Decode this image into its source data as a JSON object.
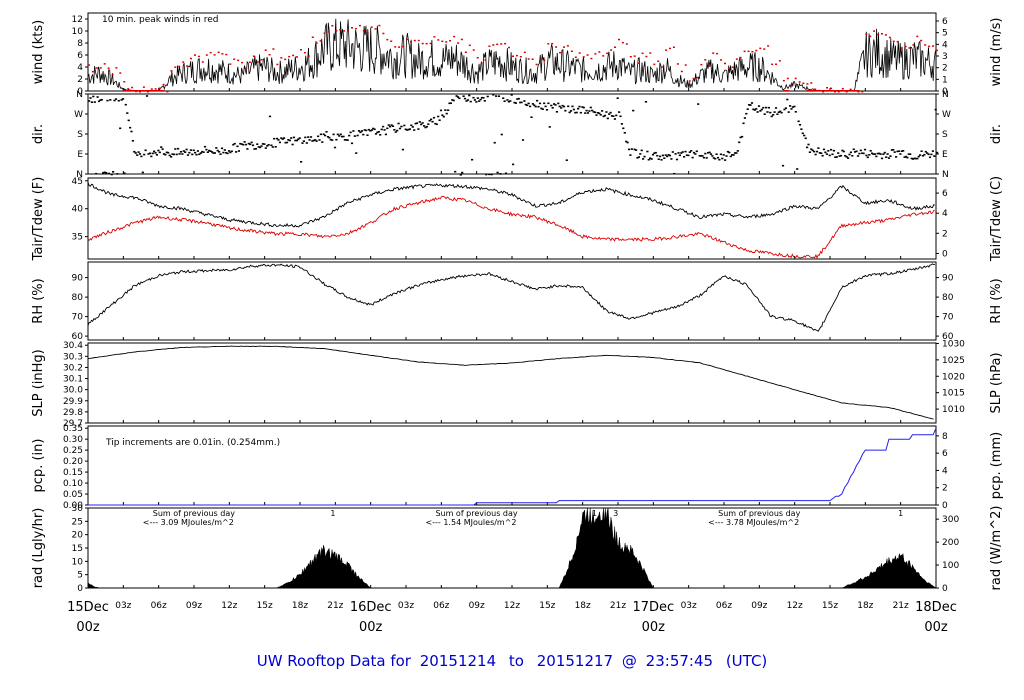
{
  "footer": {
    "prefix": "UW Rooftop Data for",
    "start": "20151214",
    "to": "to",
    "end": "20151217",
    "at": "@",
    "time": "23:57:45",
    "tz": "(UTC)"
  },
  "colors": {
    "main": "#000000",
    "red": "#dd0000",
    "blue": "#2222ee",
    "purple": "#9900cc",
    "day_label": "#dd0000",
    "footer": "#0000cc"
  },
  "x_axis": {
    "range_hours": [
      0,
      72
    ],
    "hour_ticks": [
      {
        "h": 3,
        "label": "03z"
      },
      {
        "h": 6,
        "label": "06z"
      },
      {
        "h": 9,
        "label": "09z"
      },
      {
        "h": 12,
        "label": "12z"
      },
      {
        "h": 15,
        "label": "15z"
      },
      {
        "h": 18,
        "label": "18z"
      },
      {
        "h": 21,
        "label": "21z"
      },
      {
        "h": 27,
        "label": "03z"
      },
      {
        "h": 30,
        "label": "06z"
      },
      {
        "h": 33,
        "label": "09z"
      },
      {
        "h": 36,
        "label": "12z"
      },
      {
        "h": 39,
        "label": "15z"
      },
      {
        "h": 42,
        "label": "18z"
      },
      {
        "h": 45,
        "label": "21z"
      },
      {
        "h": 51,
        "label": "03z"
      },
      {
        "h": 54,
        "label": "06z"
      },
      {
        "h": 57,
        "label": "09z"
      },
      {
        "h": 60,
        "label": "12z"
      },
      {
        "h": 63,
        "label": "15z"
      },
      {
        "h": 66,
        "label": "18z"
      },
      {
        "h": 69,
        "label": "21z"
      }
    ],
    "day_labels": [
      {
        "h": 0,
        "day": "15Dec",
        "time": "00z"
      },
      {
        "h": 24,
        "day": "16Dec",
        "time": "00z"
      },
      {
        "h": 48,
        "day": "17Dec",
        "time": "00z"
      },
      {
        "h": 72,
        "day": "18Dec",
        "time": "00z"
      }
    ]
  },
  "panels": [
    {
      "id": "wind",
      "ylabel_left": "wind (kts)",
      "ylabel_right": "wind (m/s)",
      "ylim": [
        0,
        13
      ],
      "left_ticks": [
        0,
        2,
        4,
        6,
        8,
        10,
        12
      ],
      "right_ticks": [
        0,
        1,
        2,
        3,
        4,
        5,
        6
      ],
      "right_scale": 0.5144,
      "annotation": "10 min. peak winds in red"
    },
    {
      "id": "dir",
      "ylabel_left": "dir.",
      "ylabel_right": "dir.",
      "ylim": [
        0,
        360
      ],
      "left_ticks": [
        {
          "v": 0,
          "l": "N"
        },
        {
          "v": 90,
          "l": "E"
        },
        {
          "v": 180,
          "l": "S"
        },
        {
          "v": 270,
          "l": "W"
        },
        {
          "v": 360,
          "l": "N"
        }
      ]
    },
    {
      "id": "temp",
      "ylabel_left": "Tair/Tdew (F)",
      "ylabel_right": "Tair/Tdew (C)",
      "ylim": [
        31,
        45.5
      ],
      "left_ticks": [
        35,
        40,
        45
      ],
      "right_ticks": [
        0,
        2,
        4,
        6
      ]
    },
    {
      "id": "rh",
      "ylabel_left": "RH (%)",
      "ylabel_right": "RH (%)",
      "ylim": [
        58,
        98
      ],
      "left_ticks": [
        60,
        70,
        80,
        90
      ],
      "right_ticks": [
        60,
        70,
        80,
        90
      ]
    },
    {
      "id": "slp",
      "ylabel_left": "SLP (inHg)",
      "ylabel_right": "SLP (hPa)",
      "ylim": [
        29.7,
        30.42
      ],
      "left_ticks": [
        29.7,
        29.8,
        29.9,
        30.0,
        30.1,
        30.2,
        30.3,
        30.4
      ],
      "right_ticks": [
        1010,
        1015,
        1020,
        1025,
        1030
      ]
    },
    {
      "id": "pcp",
      "ylabel_left": "pcp. (in)",
      "ylabel_right": "pcp. (mm)",
      "ylim": [
        0,
        0.36
      ],
      "left_ticks": [
        0.0,
        0.05,
        0.1,
        0.15,
        0.2,
        0.25,
        0.3,
        0.35
      ],
      "right_ticks": [
        0,
        2,
        4,
        6,
        8
      ],
      "annotation": "Tip increments are 0.01in. (0.254mm.)"
    },
    {
      "id": "rad",
      "ylabel_left": "rad (Lgly/hr)",
      "ylabel_right": "rad (W/m^2)",
      "ylim": [
        0,
        30
      ],
      "left_ticks": [
        0,
        5,
        10,
        15,
        20,
        25,
        30
      ],
      "right_ticks": [
        0,
        100,
        200,
        300
      ],
      "daily_sums": [
        {
          "h": 5.5,
          "line1": "Sum of previous day",
          "line2": "<--- 3.09 MJoules/m^2"
        },
        {
          "h": 29.5,
          "line1": "Sum of previous day",
          "line2": "<--- 1.54 MJoules/m^2"
        },
        {
          "h": 53.5,
          "line1": "Sum of previous day",
          "line2": "<--- 3.78 MJoules/m^2"
        }
      ],
      "markers": [
        {
          "h": 20.8,
          "label": "1"
        },
        {
          "h": 43.0,
          "label": "1"
        },
        {
          "h": 44.8,
          "label": "3"
        },
        {
          "h": 69.0,
          "label": "1"
        }
      ]
    }
  ],
  "chart_data": {
    "type": "line",
    "x_unit": "hours since 15Dec 00z",
    "wind_kts": {
      "x": [
        0,
        1,
        2,
        3,
        4,
        5,
        6,
        7,
        8,
        9,
        10,
        11,
        12,
        13,
        14,
        15,
        16,
        17,
        18,
        19,
        20,
        21,
        22,
        23,
        24,
        25,
        26,
        27,
        28,
        29,
        30,
        31,
        32,
        33,
        34,
        35,
        36,
        37,
        38,
        39,
        40,
        41,
        42,
        43,
        44,
        45,
        46,
        47,
        48,
        49,
        50,
        51,
        52,
        53,
        54,
        55,
        56,
        57,
        58,
        59,
        60,
        61,
        62,
        63,
        64,
        65,
        66,
        67,
        68,
        69,
        70,
        71,
        72
      ],
      "mean": [
        2.5,
        3,
        2,
        0.3,
        0,
        0,
        0,
        2,
        3,
        3.5,
        4,
        3.5,
        3,
        2.5,
        3.5,
        4,
        3,
        3.5,
        4,
        5,
        7,
        7.5,
        7.5,
        7,
        7,
        6.5,
        5.5,
        6,
        5,
        5.5,
        5,
        5.5,
        4.5,
        3,
        4.5,
        5,
        4,
        3.5,
        3,
        5,
        4.5,
        4,
        3.5,
        3.5,
        4,
        4.5,
        3,
        3.5,
        2.5,
        4,
        2,
        1,
        2.5,
        3.5,
        2.5,
        3.5,
        4,
        4,
        2.5,
        0.5,
        1,
        0.5,
        0,
        0,
        0,
        0,
        6,
        6.5,
        5.5,
        5,
        5.5,
        5,
        4.5
      ],
      "peak": [
        4,
        4.5,
        3.5,
        1,
        0.5,
        0,
        0.5,
        3.5,
        5,
        5.5,
        6.5,
        6,
        5,
        4.5,
        5.5,
        6.5,
        5,
        6,
        6.5,
        8.5,
        10.5,
        10,
        11,
        10.5,
        11,
        9,
        8,
        9,
        8,
        8.5,
        8,
        8.5,
        7,
        5,
        7.5,
        8,
        6.5,
        6,
        5,
        8,
        7,
        6.5,
        6,
        6,
        7,
        8,
        5.5,
        6,
        4.5,
        7,
        4,
        2,
        5,
        6,
        4.5,
        6,
        6.5,
        7,
        4.5,
        1.5,
        2,
        1,
        0.5,
        0,
        0,
        0,
        9.5,
        10,
        8.5,
        8,
        8.5,
        8,
        7
      ]
    },
    "dir_deg": {
      "x": [
        0,
        1,
        2,
        3,
        4,
        5,
        6,
        7,
        8,
        9,
        10,
        11,
        12,
        13,
        14,
        15,
        16,
        17,
        18,
        19,
        20,
        21,
        22,
        23,
        24,
        25,
        26,
        27,
        28,
        29,
        30,
        31,
        32,
        33,
        34,
        35,
        36,
        37,
        38,
        39,
        40,
        41,
        42,
        43,
        44,
        45,
        46,
        47,
        48,
        49,
        50,
        51,
        52,
        53,
        54,
        55,
        56,
        57,
        58,
        59,
        60,
        61,
        62,
        63,
        64,
        65,
        66,
        67,
        68,
        69,
        70,
        71,
        72
      ],
      "y": [
        340,
        350,
        355,
        350,
        80,
        100,
        110,
        95,
        100,
        105,
        110,
        105,
        115,
        130,
        135,
        140,
        145,
        150,
        155,
        160,
        165,
        170,
        175,
        180,
        190,
        200,
        210,
        215,
        220,
        230,
        260,
        355,
        350,
        345,
        350,
        355,
        340,
        330,
        320,
        310,
        300,
        295,
        290,
        280,
        270,
        270,
        100,
        90,
        85,
        80,
        85,
        90,
        85,
        80,
        90,
        95,
        310,
        290,
        280,
        285,
        300,
        120,
        100,
        95,
        90,
        100,
        95,
        90,
        95,
        100,
        85,
        90,
        95
      ]
    },
    "tair_f": {
      "x": [
        0,
        2,
        4,
        6,
        8,
        10,
        12,
        14,
        16,
        18,
        20,
        22,
        24,
        26,
        28,
        30,
        32,
        34,
        36,
        38,
        40,
        42,
        44,
        46,
        48,
        50,
        52,
        54,
        56,
        58,
        60,
        62,
        64,
        66,
        68,
        70,
        72
      ],
      "y": [
        44.5,
        42.5,
        42,
        40.5,
        40,
        39,
        38,
        37.5,
        37,
        37,
        38.5,
        41,
        42.5,
        43.5,
        44,
        44.2,
        44,
        43.5,
        42.5,
        40.5,
        41,
        43,
        43.5,
        42.5,
        41.5,
        40,
        38.5,
        39,
        38.5,
        39,
        40.5,
        40,
        44,
        41,
        41.5,
        40,
        40.5
      ]
    },
    "tdew_f": {
      "x": [
        0,
        2,
        4,
        6,
        8,
        10,
        12,
        14,
        16,
        18,
        20,
        22,
        24,
        26,
        28,
        30,
        32,
        34,
        36,
        38,
        40,
        42,
        44,
        46,
        48,
        50,
        52,
        54,
        56,
        58,
        60,
        62,
        64,
        66,
        68,
        70,
        72
      ],
      "y": [
        34.5,
        36,
        37.5,
        38.5,
        38,
        37.5,
        36.5,
        36,
        35.5,
        35.5,
        35,
        35.5,
        37.5,
        40,
        41,
        42,
        41.5,
        40,
        39,
        38.5,
        37,
        35,
        34.5,
        34.5,
        34.5,
        35,
        35.5,
        34,
        32.5,
        32,
        31.5,
        31.5,
        37,
        37.5,
        38,
        39,
        39.5
      ]
    },
    "rh_pct": {
      "x": [
        0,
        2,
        4,
        6,
        8,
        10,
        12,
        14,
        16,
        18,
        20,
        22,
        24,
        26,
        28,
        30,
        32,
        34,
        36,
        38,
        40,
        42,
        44,
        46,
        48,
        50,
        52,
        54,
        56,
        58,
        60,
        62,
        64,
        66,
        68,
        70,
        72
      ],
      "y": [
        66,
        76,
        86,
        91,
        93,
        93.5,
        94,
        96,
        96.5,
        95.5,
        87,
        80,
        76,
        82,
        86,
        89,
        91,
        92,
        88,
        84,
        86,
        85,
        73,
        69,
        72,
        75,
        81,
        91,
        86,
        70,
        68,
        62,
        85,
        91,
        92,
        94,
        97
      ]
    },
    "slp_inhg": {
      "x": [
        0,
        4,
        8,
        12,
        16,
        20,
        24,
        28,
        32,
        36,
        40,
        44,
        48,
        52,
        56,
        60,
        64,
        68,
        72
      ],
      "y": [
        30.28,
        30.34,
        30.38,
        30.39,
        30.39,
        30.37,
        30.31,
        30.25,
        30.22,
        30.24,
        30.28,
        30.31,
        30.29,
        30.24,
        30.12,
        30.0,
        29.88,
        29.84,
        29.73
      ]
    },
    "pcp_in": {
      "x": [
        0,
        32,
        33,
        38,
        40,
        44,
        58,
        63,
        64,
        65,
        66,
        68,
        70,
        72
      ],
      "y": [
        0,
        0,
        0.01,
        0.01,
        0.02,
        0.02,
        0.02,
        0.02,
        0.05,
        0.15,
        0.25,
        0.3,
        0.32,
        0.35
      ]
    },
    "rad_lgly": {
      "x": [
        0,
        0.5,
        1,
        16,
        17,
        18,
        19,
        20,
        21,
        22,
        23,
        24,
        40,
        41,
        42,
        42.5,
        43,
        43.5,
        44,
        44.5,
        45,
        46,
        47,
        48,
        64,
        65,
        66,
        67,
        68,
        69,
        70,
        71,
        72
      ],
      "y": [
        2,
        0.5,
        0,
        0,
        2,
        5,
        10,
        14,
        12,
        9,
        4,
        0,
        0,
        10,
        26,
        28,
        27,
        30,
        29,
        22,
        17,
        15,
        8,
        0,
        0,
        2,
        4,
        7,
        10,
        12,
        8,
        3,
        0
      ]
    }
  }
}
